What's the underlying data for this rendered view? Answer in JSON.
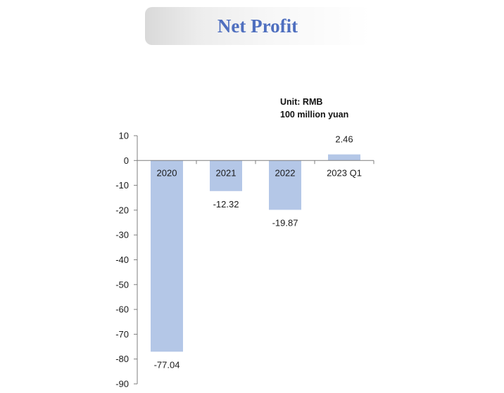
{
  "header": {
    "title": "Net Profit"
  },
  "unit_label": {
    "line1": "Unit: RMB",
    "line2": "100 million  yuan"
  },
  "colors": {
    "bar": "#b4c7e7",
    "title": "#4f6fbf",
    "axis": "#7f7f7f"
  },
  "chart_data": {
    "type": "bar",
    "title": "Net Profit",
    "categories": [
      "2020",
      "2021",
      "2022",
      "2023 Q1"
    ],
    "values": [
      -77.04,
      -12.32,
      -19.87,
      2.46
    ],
    "value_labels": [
      "-77.04",
      "-12.32",
      "-19.87",
      "2.46"
    ],
    "ylim": [
      -90,
      10
    ],
    "yticks": [
      10,
      0,
      -10,
      -20,
      -30,
      -40,
      -50,
      -60,
      -70,
      -80,
      -90
    ],
    "xlabel": "",
    "ylabel": "",
    "grid": false,
    "legend": "none",
    "category_labels_position": "at zero line"
  }
}
